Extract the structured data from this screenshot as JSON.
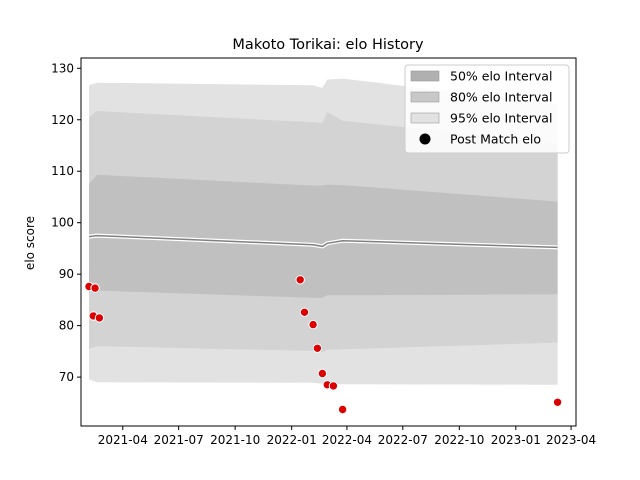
{
  "chart_data": {
    "type": "line",
    "title": "Makoto Torikai: elo History",
    "xlabel": "",
    "ylabel": "elo score",
    "xlim": [
      "2021-01-23",
      "2023-04-09"
    ],
    "ylim": [
      60.5,
      132
    ],
    "x_ticks": [
      "2021-04",
      "2021-07",
      "2021-10",
      "2022-01",
      "2022-04",
      "2022-07",
      "2022-10",
      "2023-01",
      "2023-04"
    ],
    "y_ticks": [
      70,
      80,
      90,
      100,
      110,
      120,
      130
    ],
    "grid": false,
    "legend_position": "top-right",
    "legend": [
      {
        "label": "50% elo Interval",
        "color": "#b0b0b0",
        "kind": "patch"
      },
      {
        "label": "80% elo Interval",
        "color": "#c8c8c8",
        "kind": "patch"
      },
      {
        "label": "95% elo Interval",
        "color": "#e2e2e2",
        "kind": "patch"
      },
      {
        "label": "Post Match elo",
        "color": "#000000",
        "kind": "marker"
      }
    ],
    "mean": {
      "x": [
        "2021-02-05",
        "2021-02-18",
        "2022-02-05",
        "2022-02-20",
        "2022-02-28",
        "2022-03-25",
        "2023-03-10"
      ],
      "y": [
        97.3,
        97.5,
        95.7,
        95.4,
        96.0,
        96.5,
        95.2
      ]
    },
    "mean_line_colors": {
      "outer": "#ffffff",
      "inner": "#808080"
    },
    "bands": [
      {
        "name": "95% elo Interval",
        "color": "#e2e2e2",
        "x": [
          "2021-02-05",
          "2021-02-18",
          "2022-02-05",
          "2022-02-20",
          "2022-02-28",
          "2022-03-25",
          "2023-03-10"
        ],
        "upper": [
          126.7,
          127.2,
          126.7,
          126.2,
          127.8,
          128.0,
          123.0
        ],
        "lower": [
          69.6,
          69.0,
          68.9,
          68.7,
          68.5,
          68.6,
          68.5
        ]
      },
      {
        "name": "80% elo Interval",
        "color": "#d3d3d3",
        "x": [
          "2021-02-05",
          "2021-02-18",
          "2022-02-05",
          "2022-02-20",
          "2022-02-28",
          "2022-03-25",
          "2023-03-10"
        ],
        "upper": [
          120.5,
          121.7,
          119.5,
          119.4,
          121.5,
          119.8,
          115.5
        ],
        "lower": [
          75.5,
          76.0,
          75.1,
          74.8,
          75.3,
          75.4,
          76.7
        ]
      },
      {
        "name": "50% elo Interval",
        "color": "#c0c0c0",
        "x": [
          "2021-02-05",
          "2021-02-18",
          "2022-02-05",
          "2022-02-20",
          "2022-02-28",
          "2022-03-25",
          "2023-03-10"
        ],
        "upper": [
          107.5,
          109.3,
          107.2,
          107.2,
          107.4,
          107.3,
          104.1
        ],
        "lower": [
          86.9,
          86.8,
          85.4,
          85.4,
          85.9,
          85.9,
          86.1
        ]
      }
    ],
    "points": {
      "name": "Post Match elo",
      "color": "#dd0000",
      "edge_color": "#ffffff",
      "x": [
        "2021-02-05",
        "2021-02-12",
        "2021-02-15",
        "2021-02-22",
        "2022-01-15",
        "2022-01-22",
        "2022-02-05",
        "2022-02-12",
        "2022-02-20",
        "2022-02-28",
        "2022-03-10",
        "2022-03-25",
        "2023-03-10"
      ],
      "y": [
        87.6,
        81.9,
        87.3,
        81.5,
        88.9,
        82.6,
        80.2,
        75.6,
        70.7,
        68.5,
        68.3,
        63.7,
        65.1
      ]
    }
  }
}
